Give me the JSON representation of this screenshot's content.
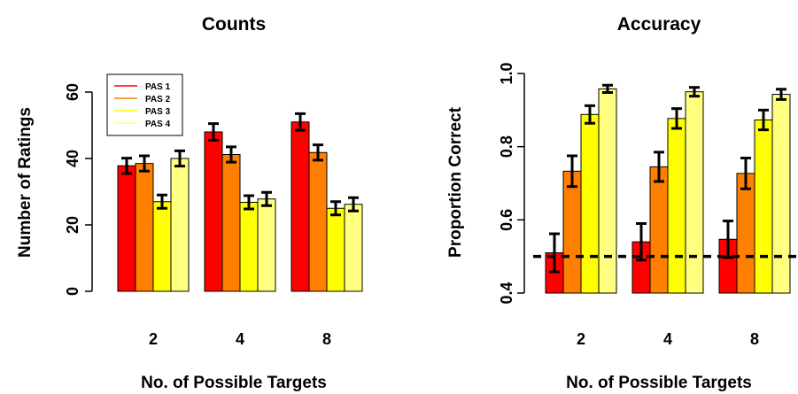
{
  "chart_data": [
    {
      "type": "bar",
      "title": "Counts",
      "xlabel": "No. of Possible Targets",
      "ylabel": "Number of Ratings",
      "categories": [
        "2",
        "4",
        "8"
      ],
      "ylim": [
        0,
        60
      ],
      "yticks": [
        "0",
        "20",
        "40",
        "60"
      ],
      "legend": {
        "position": "top-left"
      },
      "series": [
        {
          "name": "PAS 1",
          "color": "#ff0000",
          "values": [
            37.8,
            48.0,
            51.0
          ],
          "err": [
            2.3,
            2.5,
            2.5
          ]
        },
        {
          "name": "PAS 2",
          "color": "#ff8000",
          "values": [
            38.5,
            41.2,
            41.8
          ],
          "err": [
            2.3,
            2.3,
            2.3
          ]
        },
        {
          "name": "PAS 3",
          "color": "#ffff00",
          "values": [
            27.0,
            26.8,
            25.0
          ],
          "err": [
            2.0,
            2.0,
            2.0
          ]
        },
        {
          "name": "PAS 4",
          "color": "#ffff80",
          "values": [
            40.0,
            27.8,
            26.2
          ],
          "err": [
            2.3,
            2.0,
            2.0
          ]
        }
      ]
    },
    {
      "type": "bar",
      "title": "Accuracy",
      "xlabel": "No. of Possible Targets",
      "ylabel": "Proportion Correct",
      "categories": [
        "2",
        "4",
        "8"
      ],
      "ylim": [
        0.4,
        1.0
      ],
      "yticks": [
        "0.4",
        "0.6",
        "0.8",
        "1.0"
      ],
      "reference_line": 0.5,
      "series": [
        {
          "name": "PAS 1",
          "color": "#ff0000",
          "values": [
            0.51,
            0.54,
            0.547
          ],
          "err": [
            0.052,
            0.05,
            0.05
          ]
        },
        {
          "name": "PAS 2",
          "color": "#ff8000",
          "values": [
            0.733,
            0.745,
            0.727
          ],
          "err": [
            0.042,
            0.04,
            0.042
          ]
        },
        {
          "name": "PAS 3",
          "color": "#ffff00",
          "values": [
            0.888,
            0.877,
            0.873
          ],
          "err": [
            0.024,
            0.027,
            0.027
          ]
        },
        {
          "name": "PAS 4",
          "color": "#ffff80",
          "values": [
            0.958,
            0.95,
            0.943
          ],
          "err": [
            0.01,
            0.012,
            0.014
          ]
        }
      ]
    }
  ]
}
